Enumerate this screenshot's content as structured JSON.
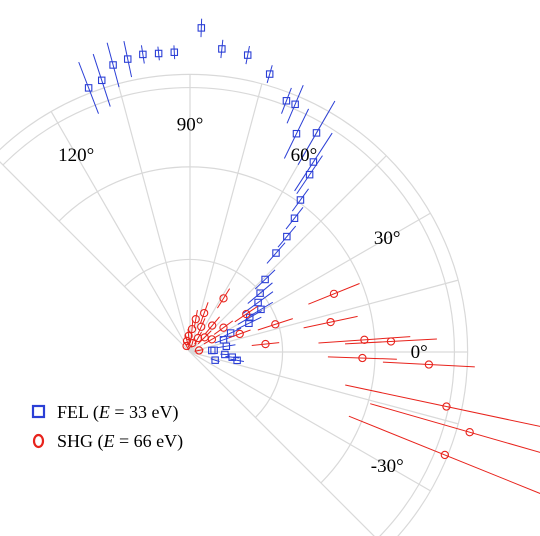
{
  "colors": {
    "fel": "#2b3fd6",
    "shg": "#e8231c",
    "grid": "#d9d9d9"
  },
  "chart_data": {
    "type": "scatter",
    "projection": "polar",
    "title": "",
    "angle_tick_labels": [
      "-30°",
      "0°",
      "30°",
      "60°",
      "90°",
      "120°"
    ],
    "angle_ticks_deg": [
      -30,
      0,
      30,
      60,
      90,
      120
    ],
    "angular_range_deg": [
      -45,
      135
    ],
    "radial_range": [
      0,
      1.15
    ],
    "radial_gridlines": [
      0.35,
      0.7,
      1.0
    ],
    "grid": true,
    "legend_position": "bottom-left",
    "legend": [
      {
        "label_prefix": "FEL (",
        "label_var": "E",
        "label_suffix": " = 33 eV)",
        "marker": "square",
        "color": "#2b3fd6"
      },
      {
        "label_prefix": "SHG (",
        "label_var": "E",
        "label_suffix": " = 66 eV)",
        "marker": "circle",
        "color": "#e8231c"
      }
    ],
    "series": [
      {
        "name": "FEL (E = 33 eV)",
        "marker": "square",
        "color": "#2b3fd6",
        "points": [
          {
            "angle": 4,
            "r": 0.105,
            "err": 0.0
          },
          {
            "angle": -4,
            "r": 0.152,
            "err": 0.02
          },
          {
            "angle": -7,
            "r": 0.185,
            "err": 0.03
          },
          {
            "angle": -10,
            "r": 0.208,
            "err": 0.03
          },
          {
            "angle": -18,
            "r": 0.115,
            "err": 0.02
          },
          {
            "angle": 4,
            "r": 0.095,
            "err": 0.0
          },
          {
            "angle": 9,
            "r": 0.16,
            "err": 0.04
          },
          {
            "angle": 20,
            "r": 0.155,
            "err": 0.04
          },
          {
            "angle": 25,
            "r": 0.195,
            "err": 0.05
          },
          {
            "angle": 26,
            "r": 0.285,
            "err": 0.06
          },
          {
            "angle": 30,
            "r": 0.3,
            "err": 0.06
          },
          {
            "angle": 31,
            "r": 0.36,
            "err": 0.06
          },
          {
            "angle": 36,
            "r": 0.366,
            "err": 0.08
          },
          {
            "angle": 40,
            "r": 0.398,
            "err": 0.07
          },
          {
            "angle": 44,
            "r": 0.454,
            "err": 0.06
          },
          {
            "angle": 49,
            "r": 0.57,
            "err": 0.06
          },
          {
            "angle": 50,
            "r": 0.655,
            "err": 0.06
          },
          {
            "angle": 52,
            "r": 0.738,
            "err": 0.06
          },
          {
            "angle": 54,
            "r": 0.817,
            "err": 0.06
          },
          {
            "angle": 56,
            "r": 0.93,
            "err": 0.1
          },
          {
            "angle": 57,
            "r": 0.985,
            "err": 0.15
          },
          {
            "angle": 60,
            "r": 1.1,
            "err": 0.16
          },
          {
            "angle": 64,
            "r": 1.056,
            "err": 0.12
          },
          {
            "angle": 67,
            "r": 1.17,
            "err": 0.09
          },
          {
            "angle": 69,
            "r": 1.17,
            "err": 0.06
          },
          {
            "angle": 74,
            "r": 1.257,
            "err": 0.04
          },
          {
            "angle": 79,
            "r": 1.315,
            "err": 0.04
          },
          {
            "angle": 84,
            "r": 1.325,
            "err": 0.04
          },
          {
            "angle": 88,
            "r": 1.41,
            "err": 0.04
          },
          {
            "angle": 93,
            "r": 1.305,
            "err": 0.03
          },
          {
            "angle": 96,
            "r": 1.305,
            "err": 0.03
          },
          {
            "angle": 99,
            "r": 1.31,
            "err": 0.04
          },
          {
            "angle": 102,
            "r": 1.302,
            "err": 0.08
          },
          {
            "angle": 105,
            "r": 1.292,
            "err": 0.1
          },
          {
            "angle": 108,
            "r": 1.242,
            "err": 0.12
          },
          {
            "angle": 111,
            "r": 1.23,
            "err": 0.12
          }
        ]
      },
      {
        "name": "SHG (E = 66 eV)",
        "marker": "circle",
        "color": "#e8231c",
        "points": [
          {
            "angle": -22,
            "r": 1.195,
            "err": 0.45
          },
          {
            "angle": -16,
            "r": 1.265,
            "err": 0.45
          },
          {
            "angle": -12,
            "r": 1.14,
            "err": 0.45
          },
          {
            "angle": -3,
            "r": 1.04,
            "err": 0.2
          },
          {
            "angle": -2,
            "r": 0.75,
            "err": 0.15
          },
          {
            "angle": 3,
            "r": 0.875,
            "err": 0.2
          },
          {
            "angle": 4,
            "r": 0.76,
            "err": 0.2
          },
          {
            "angle": 12,
            "r": 0.625,
            "err": 0.12
          },
          {
            "angle": 22,
            "r": 0.675,
            "err": 0.12
          },
          {
            "angle": 18,
            "r": 0.39,
            "err": 0.08
          },
          {
            "angle": 6,
            "r": 0.33,
            "err": 0.06
          },
          {
            "angle": 34,
            "r": 0.295,
            "err": 0.06
          },
          {
            "angle": 58,
            "r": 0.275,
            "err": 0.05
          },
          {
            "angle": 20,
            "r": 0.23,
            "err": 0.05
          },
          {
            "angle": 36,
            "r": 0.18,
            "err": 0.05
          },
          {
            "angle": 50,
            "r": 0.15,
            "err": 0.05
          },
          {
            "angle": 66,
            "r": 0.12,
            "err": 0.04
          },
          {
            "angle": 30,
            "r": 0.11,
            "err": 0.04
          },
          {
            "angle": 45,
            "r": 0.09,
            "err": 0.04
          },
          {
            "angle": 60,
            "r": 0.07,
            "err": 0.03
          },
          {
            "angle": 75,
            "r": 0.04,
            "err": 0.02
          },
          {
            "angle": 70,
            "r": 0.18,
            "err": 0.05
          },
          {
            "angle": 85,
            "r": 0.1,
            "err": 0.04
          },
          {
            "angle": 95,
            "r": 0.07,
            "err": 0.03
          },
          {
            "angle": 105,
            "r": 0.05,
            "err": 0.03
          },
          {
            "angle": 120,
            "r": 0.03,
            "err": 0.02
          },
          {
            "angle": 80,
            "r": 0.145,
            "err": 0.04
          },
          {
            "angle": 10,
            "r": 0.04,
            "err": 0.02
          }
        ]
      }
    ]
  }
}
